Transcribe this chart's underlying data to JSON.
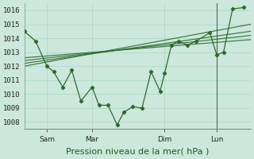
{
  "xlabel": "Pression niveau de la mer( hPa )",
  "background_color": "#cce8dc",
  "grid_color": "#aad4c4",
  "line_color": "#2d6a2d",
  "ylim": [
    1007.5,
    1016.5
  ],
  "yticks": [
    1008,
    1009,
    1010,
    1011,
    1012,
    1013,
    1014,
    1015,
    1016
  ],
  "xlim": [
    0,
    100
  ],
  "x_tick_positions": [
    10,
    30,
    62,
    85
  ],
  "x_tick_names": [
    "Sam",
    "Mar",
    "Dim",
    "Lun"
  ],
  "vline_x": 85,
  "wiggly_x": [
    0,
    5,
    10,
    13,
    17,
    21,
    25,
    30,
    33,
    37,
    41,
    44,
    48,
    52,
    56,
    60,
    62,
    65,
    68,
    72,
    76,
    82,
    85,
    88,
    92,
    97
  ],
  "wiggly_y": [
    1014.5,
    1013.8,
    1012.0,
    1011.6,
    1010.5,
    1011.7,
    1009.5,
    1010.5,
    1009.2,
    1009.2,
    1007.8,
    1008.7,
    1009.1,
    1009.0,
    1011.6,
    1010.2,
    1011.5,
    1013.5,
    1013.8,
    1013.5,
    1013.8,
    1014.4,
    1012.8,
    1013.0,
    1016.1,
    1016.2
  ],
  "trend_lines": [
    {
      "x": [
        0,
        100
      ],
      "y": [
        1012.0,
        1015.0
      ]
    },
    {
      "x": [
        0,
        100
      ],
      "y": [
        1012.2,
        1014.5
      ]
    },
    {
      "x": [
        0,
        100
      ],
      "y": [
        1012.4,
        1014.2
      ]
    },
    {
      "x": [
        0,
        100
      ],
      "y": [
        1012.6,
        1013.9
      ]
    }
  ],
  "xlabel_fontsize": 8,
  "tick_fontsize": 6.5
}
